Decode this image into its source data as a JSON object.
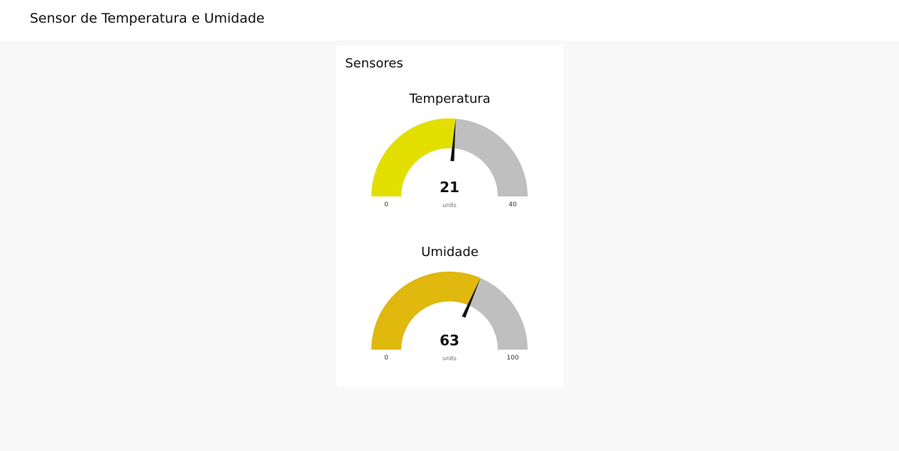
{
  "header": {
    "title": "Sensor de Temperatura e Umidade"
  },
  "card": {
    "title": "Sensores"
  },
  "gauges": [
    {
      "title": "Temperatura",
      "value": 21,
      "units": "units",
      "min": 0,
      "max": 40,
      "fill_color": "#e2df00",
      "track_color": "#bfbfbf",
      "needle_color": "#111111"
    },
    {
      "title": "Umidade",
      "value": 63,
      "units": "units",
      "min": 0,
      "max": 100,
      "fill_color": "#e0b80e",
      "track_color": "#bfbfbf",
      "needle_color": "#111111"
    }
  ]
}
